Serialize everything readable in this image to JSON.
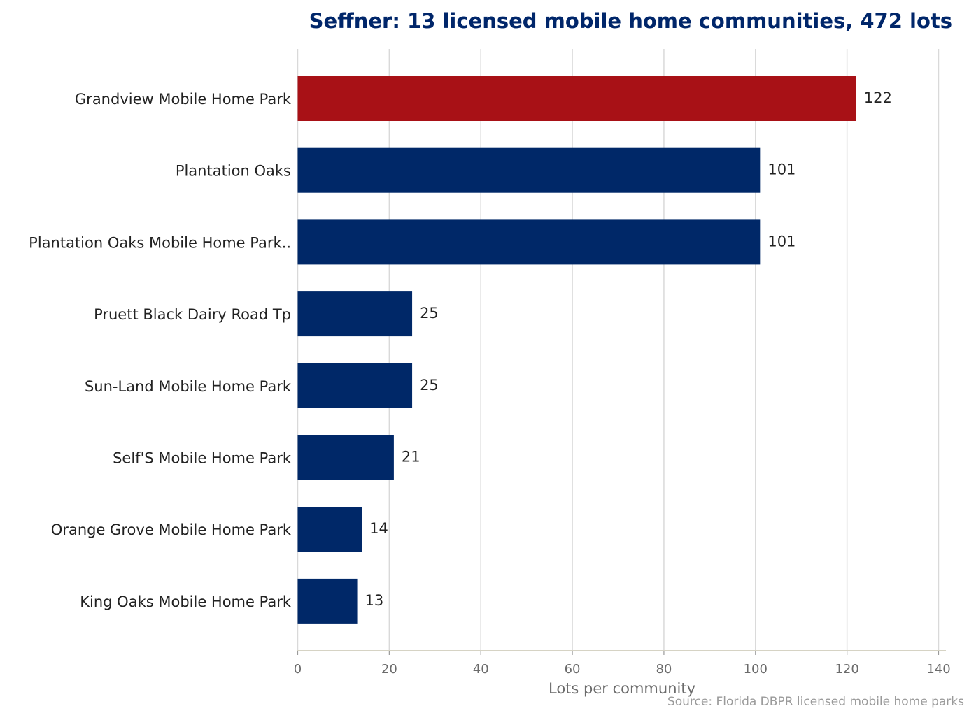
{
  "chart_data": {
    "type": "bar",
    "orientation": "horizontal",
    "title": "Seffner: 13 licensed mobile home communities, 472 lots",
    "xlabel": "Lots per community",
    "ylabel": "",
    "source": "Source: Florida DBPR licensed mobile home parks",
    "xlim": [
      0,
      140
    ],
    "xticks": [
      0,
      20,
      40,
      60,
      80,
      100,
      120,
      140
    ],
    "grid": "vertical",
    "categories": [
      "Grandview Mobile Home Park",
      "Plantation Oaks",
      "Plantation Oaks Mobile Home Park..",
      "Pruett Black Dairy Road Tp",
      "Sun-Land Mobile Home Park",
      "Self'S Mobile Home Park",
      "Orange Grove Mobile Home Park",
      "King Oaks Mobile Home Park"
    ],
    "values": [
      122,
      101,
      101,
      25,
      25,
      21,
      14,
      13
    ],
    "highlight_index": 0,
    "colors": {
      "highlight": "#a81116",
      "bar": "#002868",
      "grid": "#d9d9d9",
      "axis": "#d6d3c4"
    }
  }
}
